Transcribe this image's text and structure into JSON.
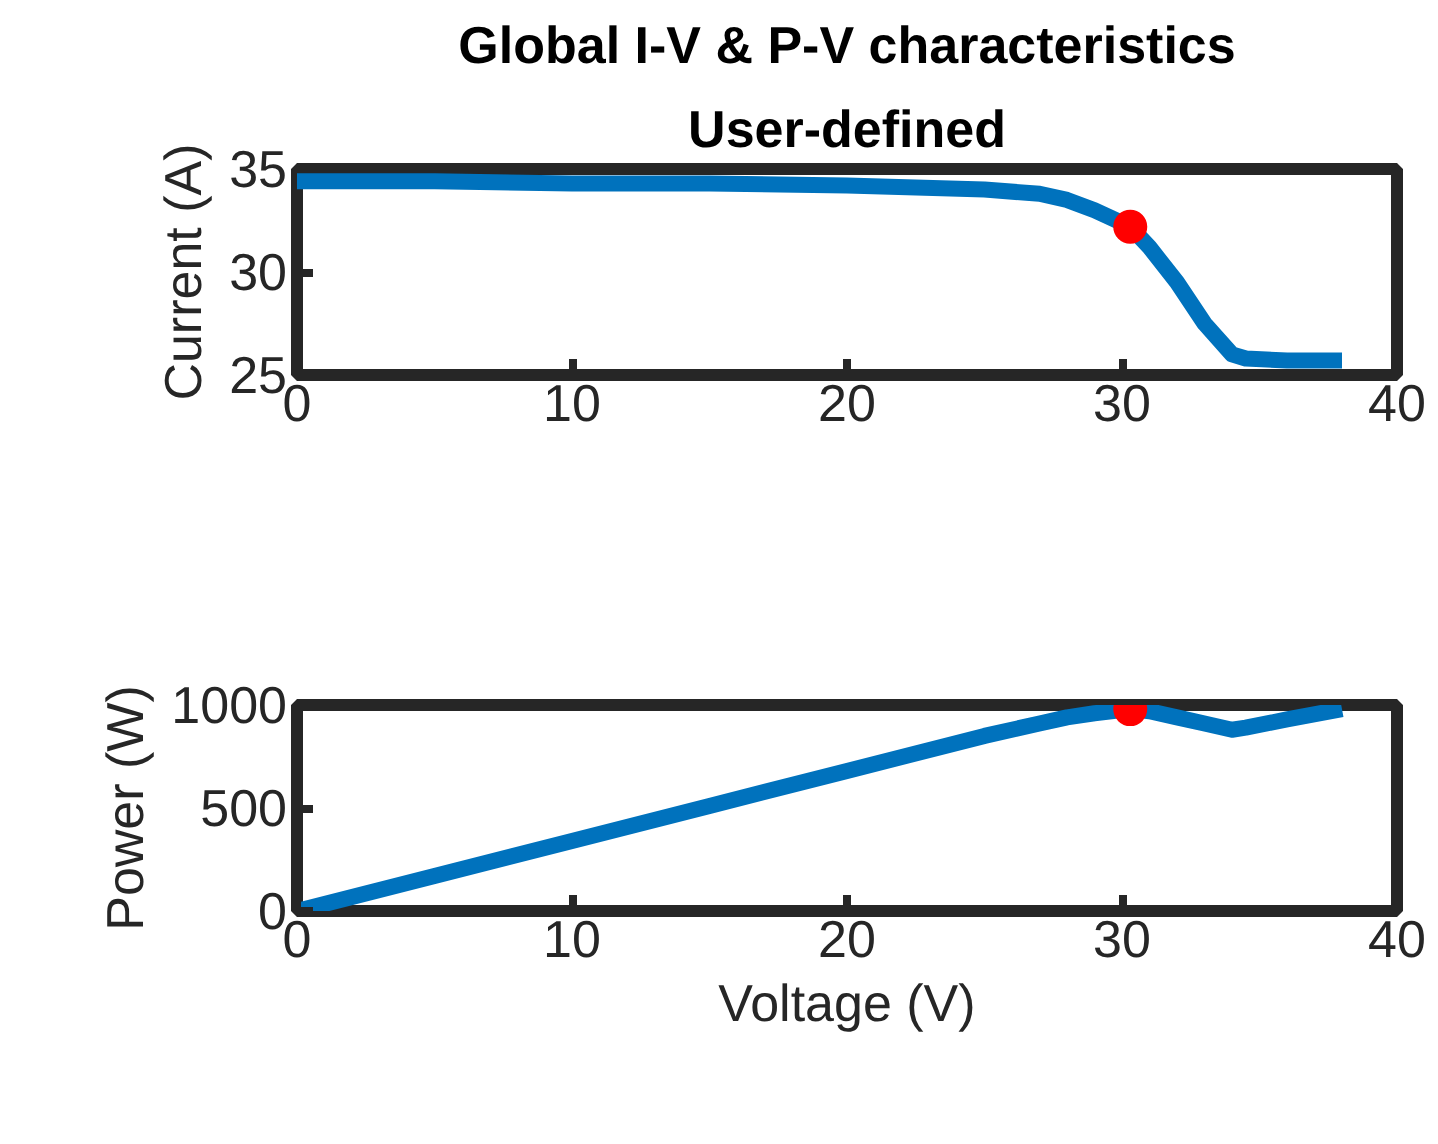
{
  "chart_data": [
    {
      "type": "line",
      "title": "Global I-V & P-V characteristics",
      "subtitle": "User-defined",
      "ylabel": "Current (A)",
      "xlim": [
        0,
        40
      ],
      "xticks": [
        0,
        10,
        20,
        30,
        40
      ],
      "ylim": [
        25,
        35
      ],
      "yticks": [
        25,
        30,
        35
      ],
      "grid": false,
      "series": [
        {
          "color": "#0072bd",
          "x": [
            0,
            5,
            10,
            15,
            20,
            25,
            27,
            28,
            29,
            30.3,
            31,
            32,
            33,
            34,
            34.5,
            36,
            38
          ],
          "values": [
            34.4,
            34.4,
            34.3,
            34.3,
            34.2,
            34.0,
            33.8,
            33.5,
            33.0,
            32.2,
            31.2,
            29.5,
            27.5,
            26.0,
            25.8,
            25.7,
            25.7
          ]
        },
        {
          "type": "scatter",
          "color": "#ff0000",
          "x": [
            30.3
          ],
          "values": [
            32.2
          ]
        }
      ]
    },
    {
      "type": "line",
      "xlabel": "Voltage (V)",
      "ylabel": "Power (W)",
      "xlim": [
        0,
        40
      ],
      "xticks": [
        0,
        10,
        20,
        30,
        40
      ],
      "ylim": [
        0,
        1000
      ],
      "yticks": [
        0,
        500,
        1000
      ],
      "grid": false,
      "series": [
        {
          "color": "#0072bd",
          "x": [
            0,
            5,
            10,
            15,
            20,
            25,
            27,
            28,
            29,
            30.3,
            31,
            32,
            33,
            34,
            34.5,
            36,
            38
          ],
          "values": [
            0,
            170,
            340,
            510,
            680,
            850,
            910,
            940,
            960,
            980,
            970,
            940,
            910,
            880,
            890,
            930,
            980
          ]
        },
        {
          "type": "scatter",
          "color": "#ff0000",
          "x": [
            30.3
          ],
          "values": [
            980
          ]
        }
      ]
    }
  ]
}
